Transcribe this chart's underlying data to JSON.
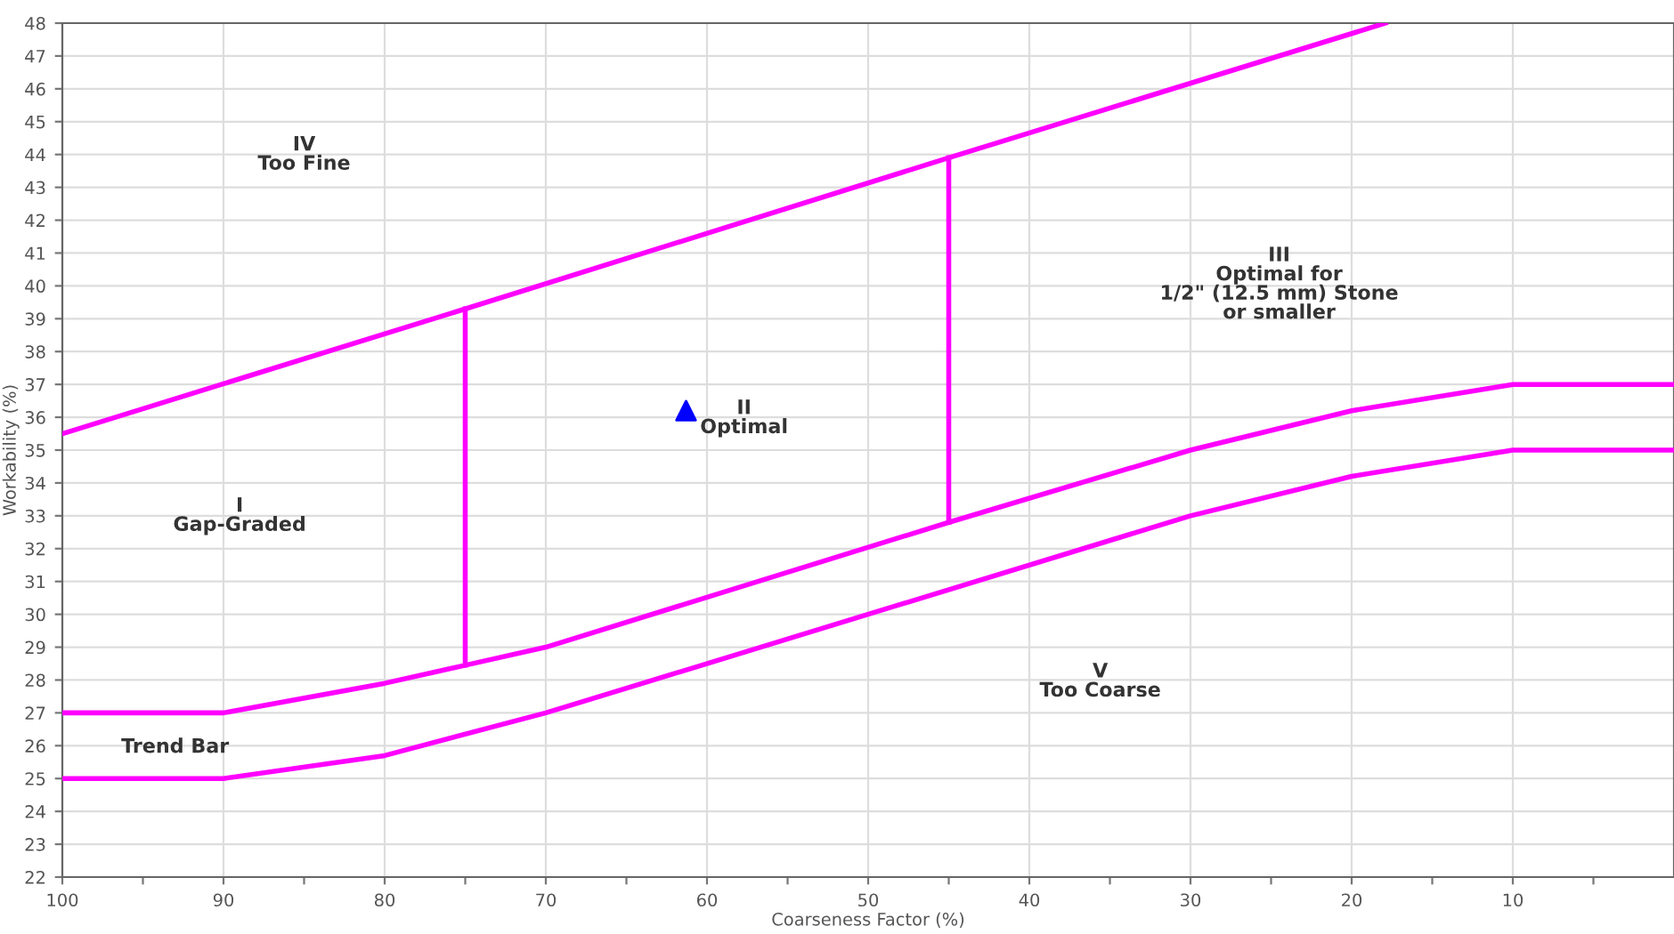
{
  "chart_data": {
    "type": "line",
    "xlabel": "Coarseness Factor (%)",
    "ylabel": "Workability (%)",
    "xlim": [
      100,
      0
    ],
    "ylim": [
      22,
      48
    ],
    "xticks": [
      100,
      {
        "value": 95,
        "label": null
      },
      90,
      {
        "value": 85,
        "label": null
      },
      80,
      {
        "value": 75,
        "label": null
      },
      70,
      {
        "value": 65,
        "label": null
      },
      60,
      {
        "value": 55,
        "label": null
      },
      50,
      {
        "value": 45,
        "label": null
      },
      40,
      {
        "value": 35,
        "label": null
      },
      30,
      {
        "value": 25,
        "label": null
      },
      20,
      {
        "value": 15,
        "label": null
      },
      10,
      {
        "value": 5,
        "label": null
      }
    ],
    "yticks": [
      22,
      23,
      24,
      25,
      26,
      27,
      28,
      29,
      30,
      31,
      32,
      33,
      34,
      35,
      36,
      37,
      38,
      39,
      40,
      41,
      42,
      43,
      44,
      45,
      46,
      47,
      48
    ],
    "grid": true,
    "legend": false,
    "series": [
      {
        "color": "#ff00ff",
        "x": [
          100,
          75,
          45,
          17.9
        ],
        "values": [
          35.5,
          39.3,
          43.9,
          48
        ]
      },
      {
        "color": "#ff00ff",
        "x": [
          100,
          90,
          80,
          75,
          70,
          45,
          30,
          20,
          10,
          0
        ],
        "values": [
          27,
          27,
          27.9,
          28.45,
          29,
          32.8,
          35,
          36.2,
          37,
          37
        ]
      },
      {
        "color": "#ff00ff",
        "x": [
          100,
          90,
          80,
          70,
          30,
          20,
          10,
          0
        ],
        "values": [
          25,
          25,
          25.7,
          27,
          33,
          34.2,
          35,
          35
        ]
      },
      {
        "color": "#ff00ff",
        "x": [
          75,
          75
        ],
        "values": [
          28.45,
          39.3
        ]
      },
      {
        "color": "#ff00ff",
        "x": [
          45,
          45
        ],
        "values": [
          32.8,
          43.9
        ]
      },
      {
        "type": "scatter",
        "marker": "triangle",
        "color": "#0000ff",
        "x": [
          61.3
        ],
        "values": [
          36.2
        ]
      }
    ],
    "annotations": [
      "IV\nToo Fine",
      "I\nGap-Graded",
      "II\nOptimal",
      "III\nOptimal for\n1/2\" (12.5 mm) Stone\nor smaller",
      "V\nToo Coarse",
      "Trend Bar"
    ]
  }
}
